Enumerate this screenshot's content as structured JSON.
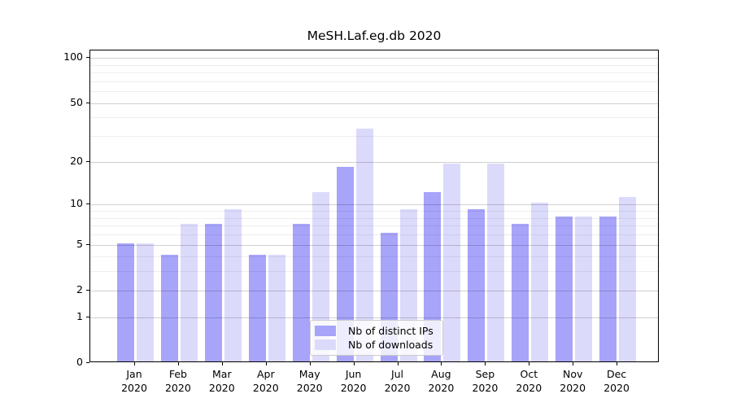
{
  "chart_data": {
    "type": "bar",
    "title": "MeSH.Laf.eg.db 2020",
    "categories": [
      "Jan",
      "Feb",
      "Mar",
      "Apr",
      "May",
      "Jun",
      "Jul",
      "Aug",
      "Sep",
      "Oct",
      "Nov",
      "Dec"
    ],
    "year_label": "2020",
    "series": [
      {
        "name": "Nb of distinct IPs",
        "color": "#a7a4fa",
        "values": [
          5,
          4,
          7,
          4,
          7,
          18,
          6,
          12,
          9,
          7,
          8,
          8
        ]
      },
      {
        "name": "Nb of downloads",
        "color": "#dcdafb",
        "values": [
          5,
          7,
          9,
          4,
          12,
          33,
          9,
          19,
          19,
          10,
          8,
          11
        ]
      }
    ],
    "xlabel": "",
    "ylabel": "",
    "yscale": "log10(1+v)",
    "ylim": [
      0,
      112
    ],
    "yticks_major": [
      0,
      1,
      2,
      5,
      10,
      20,
      50,
      100
    ],
    "ytick_labels": [
      "0",
      "1",
      "2",
      "5",
      "10",
      "20",
      "50",
      "100"
    ],
    "yticks_minor": [
      3,
      4,
      6,
      7,
      8,
      9,
      30,
      40,
      60,
      70,
      80,
      90
    ],
    "grid": "horizontal",
    "legend_position": "bottom-center"
  }
}
